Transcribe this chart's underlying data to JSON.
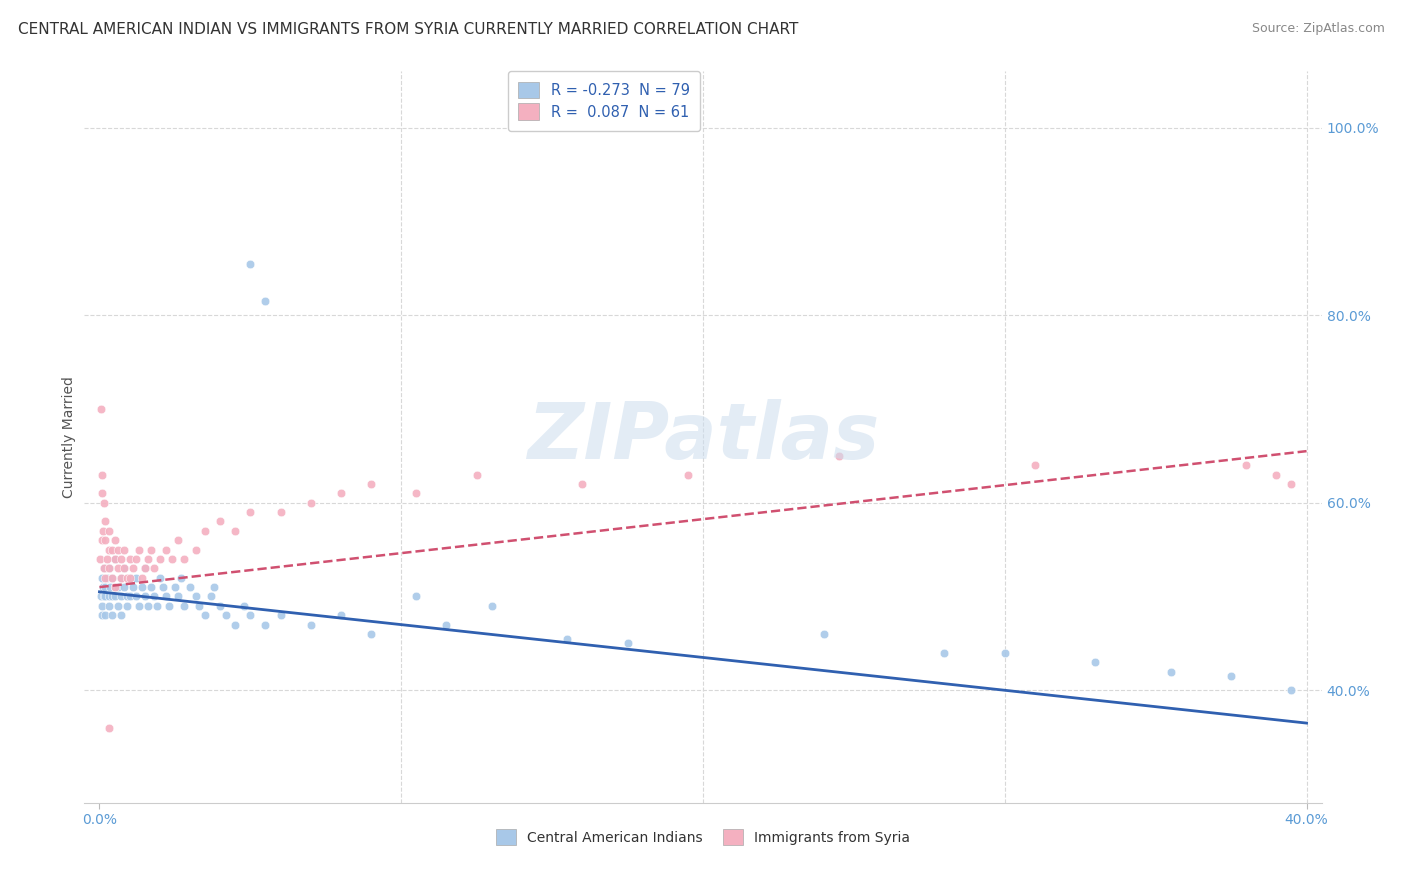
{
  "title": "CENTRAL AMERICAN INDIAN VS IMMIGRANTS FROM SYRIA CURRENTLY MARRIED CORRELATION CHART",
  "source": "Source: ZipAtlas.com",
  "ylabel": "Currently Married",
  "legend_top": [
    {
      "label": "R = -0.273  N = 79",
      "color": "#a8c8e8"
    },
    {
      "label": "R =  0.087  N = 61",
      "color": "#f4b0c0"
    }
  ],
  "legend_bottom": [
    {
      "label": "Central American Indians",
      "color": "#a8c8e8"
    },
    {
      "label": "Immigrants from Syria",
      "color": "#f4b0c0"
    }
  ],
  "blue_scatter": {
    "x": [
      0.0005,
      0.0008,
      0.001,
      0.001,
      0.0012,
      0.0015,
      0.0015,
      0.002,
      0.002,
      0.002,
      0.0025,
      0.003,
      0.003,
      0.003,
      0.0035,
      0.004,
      0.004,
      0.004,
      0.005,
      0.005,
      0.005,
      0.006,
      0.006,
      0.007,
      0.007,
      0.007,
      0.008,
      0.008,
      0.009,
      0.009,
      0.01,
      0.01,
      0.011,
      0.012,
      0.012,
      0.013,
      0.014,
      0.015,
      0.015,
      0.016,
      0.017,
      0.018,
      0.019,
      0.02,
      0.021,
      0.022,
      0.023,
      0.025,
      0.026,
      0.027,
      0.028,
      0.03,
      0.032,
      0.033,
      0.035,
      0.037,
      0.038,
      0.04,
      0.042,
      0.045,
      0.048,
      0.05,
      0.055,
      0.06,
      0.07,
      0.08,
      0.09,
      0.105,
      0.115,
      0.13,
      0.155,
      0.175,
      0.24,
      0.28,
      0.3,
      0.33,
      0.355,
      0.375,
      0.395
    ],
    "y": [
      0.5,
      0.48,
      0.52,
      0.49,
      0.51,
      0.5,
      0.53,
      0.51,
      0.48,
      0.5,
      0.52,
      0.5,
      0.49,
      0.53,
      0.51,
      0.5,
      0.52,
      0.48,
      0.51,
      0.5,
      0.54,
      0.51,
      0.49,
      0.52,
      0.5,
      0.48,
      0.51,
      0.53,
      0.5,
      0.49,
      0.52,
      0.5,
      0.51,
      0.5,
      0.52,
      0.49,
      0.51,
      0.5,
      0.53,
      0.49,
      0.51,
      0.5,
      0.49,
      0.52,
      0.51,
      0.5,
      0.49,
      0.51,
      0.5,
      0.52,
      0.49,
      0.51,
      0.5,
      0.49,
      0.48,
      0.5,
      0.51,
      0.49,
      0.48,
      0.47,
      0.49,
      0.48,
      0.47,
      0.48,
      0.47,
      0.48,
      0.46,
      0.5,
      0.47,
      0.49,
      0.455,
      0.45,
      0.46,
      0.44,
      0.44,
      0.43,
      0.42,
      0.415,
      0.4
    ]
  },
  "blue_outliers": {
    "x": [
      0.05,
      0.055
    ],
    "y": [
      0.855,
      0.815
    ]
  },
  "pink_scatter": {
    "x": [
      0.0003,
      0.0005,
      0.0008,
      0.001,
      0.001,
      0.0012,
      0.0015,
      0.0015,
      0.002,
      0.002,
      0.002,
      0.0025,
      0.003,
      0.003,
      0.003,
      0.004,
      0.004,
      0.005,
      0.005,
      0.005,
      0.006,
      0.006,
      0.007,
      0.007,
      0.008,
      0.008,
      0.009,
      0.01,
      0.01,
      0.011,
      0.012,
      0.013,
      0.014,
      0.015,
      0.016,
      0.017,
      0.018,
      0.02,
      0.022,
      0.024,
      0.026,
      0.028,
      0.032,
      0.035,
      0.04,
      0.045,
      0.05,
      0.06,
      0.07,
      0.08,
      0.09,
      0.105,
      0.125,
      0.16,
      0.195,
      0.245,
      0.31,
      0.38,
      0.39,
      0.395,
      0.003
    ],
    "y": [
      0.54,
      0.7,
      0.63,
      0.56,
      0.61,
      0.57,
      0.53,
      0.6,
      0.56,
      0.52,
      0.58,
      0.54,
      0.57,
      0.53,
      0.55,
      0.55,
      0.52,
      0.54,
      0.56,
      0.51,
      0.53,
      0.55,
      0.54,
      0.52,
      0.53,
      0.55,
      0.52,
      0.54,
      0.52,
      0.53,
      0.54,
      0.55,
      0.52,
      0.53,
      0.54,
      0.55,
      0.53,
      0.54,
      0.55,
      0.54,
      0.56,
      0.54,
      0.55,
      0.57,
      0.58,
      0.57,
      0.59,
      0.59,
      0.6,
      0.61,
      0.62,
      0.61,
      0.63,
      0.62,
      0.63,
      0.65,
      0.64,
      0.64,
      0.63,
      0.62,
      0.36
    ]
  },
  "blue_line_x": [
    0.0,
    0.4
  ],
  "blue_line_y": [
    0.505,
    0.365
  ],
  "pink_line_x": [
    0.0,
    0.4
  ],
  "pink_line_y": [
    0.51,
    0.655
  ],
  "xlim": [
    -0.005,
    0.405
  ],
  "ylim": [
    0.28,
    1.06
  ],
  "ytick_vals": [
    0.4,
    0.6,
    0.8,
    1.0
  ],
  "ytick_labels": [
    "40.0%",
    "60.0%",
    "80.0%",
    "100.0%"
  ],
  "xtick_show": [
    "0.0%",
    "40.0%"
  ],
  "blue_dot_color": "#a8c8e8",
  "pink_dot_color": "#f4b0c0",
  "blue_line_color": "#3060b0",
  "pink_line_color": "#d05070",
  "grid_color": "#d8d8d8",
  "watermark": "ZIPatlas",
  "title_fontsize": 11,
  "source_fontsize": 9
}
